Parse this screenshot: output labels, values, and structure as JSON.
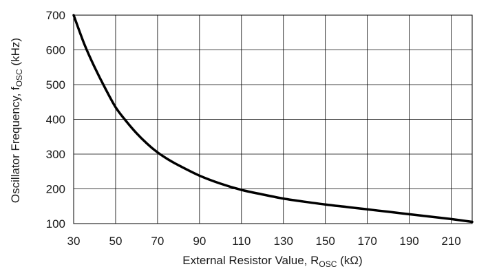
{
  "chart_data": {
    "type": "line",
    "xlabel": {
      "main": "External Resistor Value, R",
      "sub": "OSC",
      "unit": " (kΩ)"
    },
    "ylabel": {
      "main": "Oscillator Frequency, f",
      "sub": "OSC",
      "unit": " (kHz)"
    },
    "xlim": [
      30,
      220
    ],
    "ylim": [
      100,
      700
    ],
    "x_ticks": [
      30,
      50,
      70,
      90,
      110,
      130,
      150,
      170,
      190,
      210
    ],
    "y_ticks": [
      100,
      200,
      300,
      400,
      500,
      600,
      700
    ],
    "grid": true,
    "legend": "none",
    "series": [
      {
        "color": "#000000",
        "x": [
          30,
          35,
          40,
          45,
          50,
          55,
          60,
          65,
          70,
          75,
          80,
          90,
          100,
          110,
          120,
          130,
          140,
          150,
          160,
          170,
          180,
          190,
          200,
          210,
          220
        ],
        "y": [
          700,
          618,
          550,
          490,
          435,
          395,
          360,
          330,
          305,
          285,
          268,
          238,
          215,
          197,
          184,
          172,
          163,
          155,
          148,
          141,
          134,
          127,
          120,
          113,
          105
        ]
      }
    ]
  }
}
